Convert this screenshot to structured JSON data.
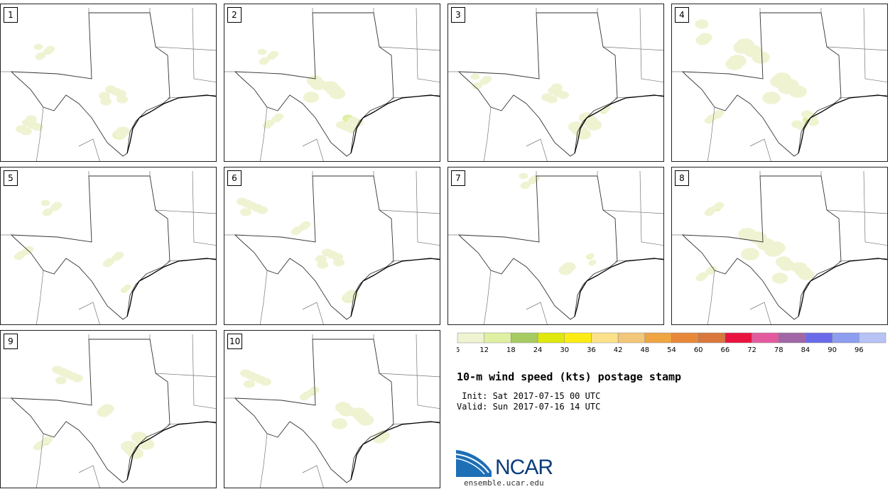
{
  "panels": [
    {
      "label": "1",
      "blobs": [
        [
          65,
          68,
          4
        ],
        [
          40,
          170,
          5
        ],
        [
          160,
          130,
          5
        ],
        [
          182,
          175,
          6
        ]
      ]
    },
    {
      "label": "2",
      "blobs": [
        [
          65,
          75,
          4
        ],
        [
          140,
          120,
          7
        ],
        [
          70,
          165,
          4
        ],
        [
          180,
          170,
          5
        ]
      ]
    },
    {
      "label": "3",
      "blobs": [
        [
          50,
          110,
          4
        ],
        [
          150,
          125,
          5
        ],
        [
          200,
          170,
          7
        ],
        [
          225,
          148,
          3
        ]
      ]
    },
    {
      "label": "4",
      "blobs": [
        [
          60,
          40,
          6
        ],
        [
          110,
          70,
          8
        ],
        [
          160,
          120,
          8
        ],
        [
          60,
          160,
          4
        ],
        [
          185,
          165,
          5
        ]
      ]
    },
    {
      "label": "5",
      "blobs": [
        [
          75,
          58,
          4
        ],
        [
          35,
          120,
          4
        ],
        [
          160,
          130,
          4
        ],
        [
          180,
          170,
          3
        ]
      ]
    },
    {
      "label": "6",
      "blobs": [
        [
          40,
          58,
          5
        ],
        [
          110,
          85,
          4
        ],
        [
          150,
          130,
          5
        ],
        [
          190,
          175,
          6
        ]
      ]
    },
    {
      "label": "7",
      "blobs": [
        [
          118,
          20,
          4
        ],
        [
          170,
          150,
          6
        ],
        [
          200,
          130,
          3
        ]
      ]
    },
    {
      "label": "8",
      "blobs": [
        [
          130,
          110,
          8
        ],
        [
          170,
          145,
          7
        ],
        [
          50,
          150,
          4
        ],
        [
          60,
          60,
          4
        ]
      ]
    },
    {
      "label": "9",
      "blobs": [
        [
          95,
          65,
          5
        ],
        [
          150,
          120,
          6
        ],
        [
          200,
          160,
          7
        ],
        [
          60,
          160,
          4
        ]
      ]
    },
    {
      "label": "10",
      "blobs": [
        [
          45,
          70,
          5
        ],
        [
          180,
          120,
          7
        ],
        [
          210,
          150,
          6
        ],
        [
          120,
          90,
          4
        ]
      ]
    }
  ],
  "colorbar": {
    "colors": [
      "#eff3d2",
      "#dff0a2",
      "#a7cb63",
      "#dfe80c",
      "#fdec14",
      "#fbe18a",
      "#f3c779",
      "#eea542",
      "#e8893a",
      "#d9773c",
      "#e8143f",
      "#e45a9e",
      "#a066a6",
      "#6a6ae9",
      "#8d9df0",
      "#b7c3f5"
    ],
    "tick_labels": [
      "6",
      "12",
      "18",
      "24",
      "30",
      "36",
      "42",
      "48",
      "54",
      "60",
      "66",
      "72",
      "78",
      "84",
      "90",
      "96"
    ]
  },
  "title": "10-m wind speed (kts) postage stamp",
  "init_line": " Init: Sat 2017-07-15 00 UTC",
  "valid_line": "Valid: Sun 2017-07-16 14 UTC",
  "logo": {
    "text": "NCAR",
    "url": "ensemble.ucar.edu"
  }
}
